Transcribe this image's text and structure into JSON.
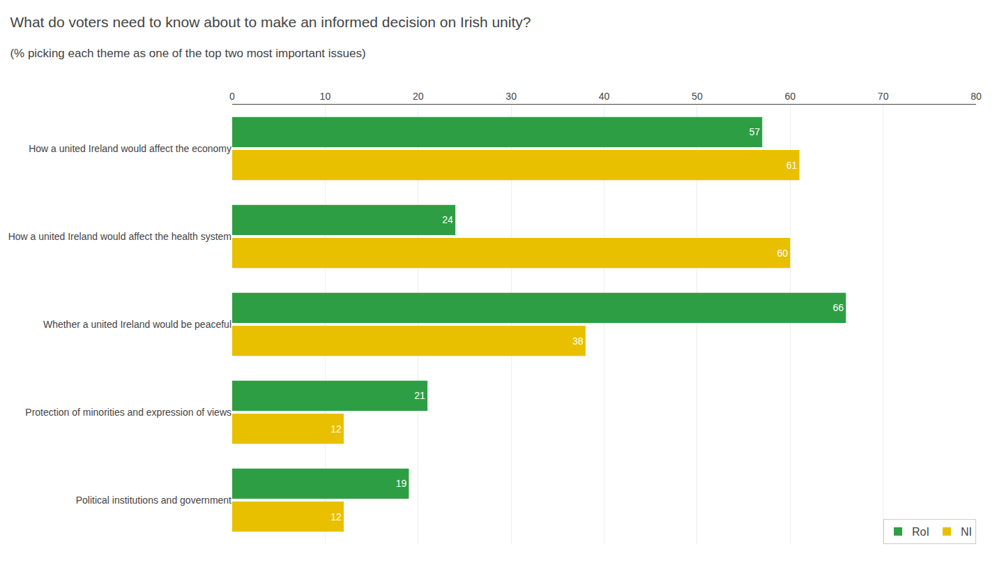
{
  "chart_data": {
    "type": "bar",
    "orientation": "horizontal",
    "title": "What do voters need to know about to make an informed decision on Irish unity?",
    "subtitle": "(% picking each theme as one of the top two most important issues)",
    "categories": [
      "How a united Ireland would affect the economy",
      "How a united Ireland would affect the health system",
      "Whether a united Ireland would be peaceful",
      "Protection of minorities and expression of views",
      "Political institutions and government"
    ],
    "series": [
      {
        "name": "RoI",
        "color": "#2e9e44",
        "values": [
          57,
          24,
          66,
          21,
          19
        ]
      },
      {
        "name": "NI",
        "color": "#e8c000",
        "values": [
          61,
          60,
          38,
          12,
          12
        ]
      }
    ],
    "xlim": [
      0,
      80
    ],
    "xticks": [
      0,
      10,
      20,
      30,
      40,
      50,
      60,
      70,
      80
    ],
    "grid": true,
    "legend": "lower right",
    "data_labels": true
  }
}
